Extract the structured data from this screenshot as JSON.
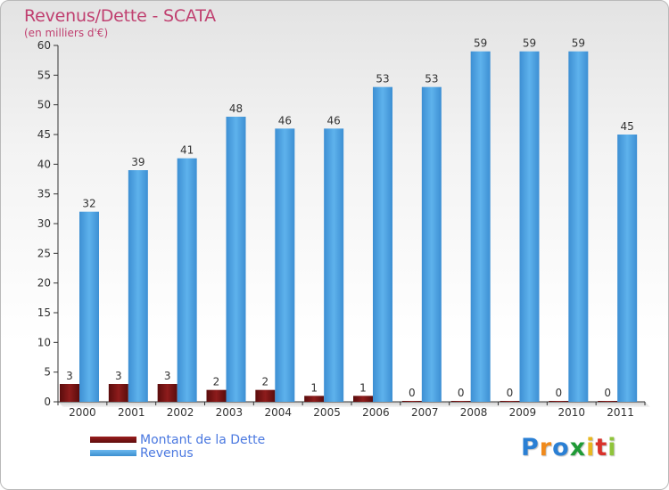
{
  "header": {
    "title": "Revenus/Dette - SCATA",
    "subtitle": "(en milliers d'€)"
  },
  "legend": {
    "items": [
      {
        "label": "Montant de la Dette",
        "color": "#7a1414"
      },
      {
        "label": "Revenus",
        "color": "#4fa3e3"
      }
    ]
  },
  "logo": {
    "letters": [
      "P",
      "r",
      "o",
      "x",
      "i",
      "t",
      "i"
    ],
    "colors": [
      "#2a7fd4",
      "#f08a1c",
      "#2a7fd4",
      "#1f9a36",
      "#e8b820",
      "#d9322b",
      "#8fc43a"
    ]
  },
  "chart_data": {
    "type": "bar",
    "categories": [
      "2000",
      "2001",
      "2002",
      "2003",
      "2004",
      "2005",
      "2006",
      "2007",
      "2008",
      "2009",
      "2010",
      "2011"
    ],
    "series": [
      {
        "name": "Montant de la Dette",
        "color": "#7a1414",
        "values": [
          3,
          3,
          3,
          2,
          2,
          1,
          1,
          0,
          0,
          0,
          0,
          0
        ]
      },
      {
        "name": "Revenus",
        "color": "#4fa3e3",
        "values": [
          32,
          39,
          41,
          48,
          46,
          46,
          53,
          53,
          59,
          59,
          59,
          45
        ]
      }
    ],
    "title": "Revenus/Dette - SCATA",
    "subtitle": "(en milliers d'€)",
    "ylim": [
      0,
      60
    ],
    "yticks": [
      0,
      5,
      10,
      15,
      20,
      25,
      30,
      35,
      40,
      45,
      50,
      55,
      60
    ],
    "grid": false,
    "legend_position": "bottom-left"
  }
}
